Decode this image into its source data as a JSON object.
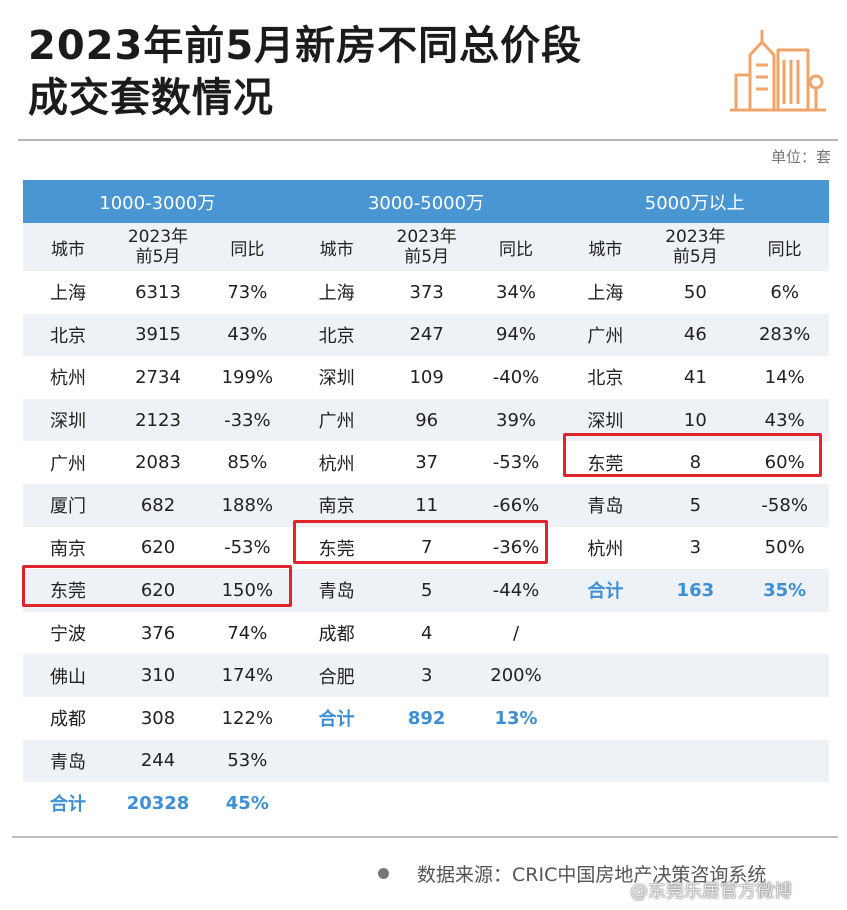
{
  "title": {
    "line1": "2023年前5月新房不同总价段",
    "line2": "成交套数情况"
  },
  "unit": "单位：套",
  "groups": [
    "1000-3000万",
    "3000-5000万",
    "5000万以上"
  ],
  "subheaders": {
    "city": "城市",
    "period_line1": "2023年",
    "period_line2": "前5月",
    "yoy": "同比"
  },
  "rows": [
    [
      [
        "上海",
        "6313",
        "73%"
      ],
      [
        "上海",
        "373",
        "34%"
      ],
      [
        "上海",
        "50",
        "6%"
      ]
    ],
    [
      [
        "北京",
        "3915",
        "43%"
      ],
      [
        "北京",
        "247",
        "94%"
      ],
      [
        "广州",
        "46",
        "283%"
      ]
    ],
    [
      [
        "杭州",
        "2734",
        "199%"
      ],
      [
        "深圳",
        "109",
        "-40%"
      ],
      [
        "北京",
        "41",
        "14%"
      ]
    ],
    [
      [
        "深圳",
        "2123",
        "-33%"
      ],
      [
        "广州",
        "96",
        "39%"
      ],
      [
        "深圳",
        "10",
        "43%"
      ]
    ],
    [
      [
        "广州",
        "2083",
        "85%"
      ],
      [
        "杭州",
        "37",
        "-53%"
      ],
      [
        "东莞",
        "8",
        "60%"
      ]
    ],
    [
      [
        "厦门",
        "682",
        "188%"
      ],
      [
        "南京",
        "11",
        "-66%"
      ],
      [
        "青岛",
        "5",
        "-58%"
      ]
    ],
    [
      [
        "南京",
        "620",
        "-53%"
      ],
      [
        "东莞",
        "7",
        "-36%"
      ],
      [
        "杭州",
        "3",
        "50%"
      ]
    ],
    [
      [
        "东莞",
        "620",
        "150%"
      ],
      [
        "青岛",
        "5",
        "-44%"
      ],
      [
        "合计",
        "163",
        "35%"
      ]
    ],
    [
      [
        "宁波",
        "376",
        "74%"
      ],
      [
        "成都",
        "4",
        "/"
      ],
      [
        "",
        "",
        ""
      ]
    ],
    [
      [
        "佛山",
        "310",
        "174%"
      ],
      [
        "合肥",
        "3",
        "200%"
      ],
      [
        "",
        "",
        ""
      ]
    ],
    [
      [
        "成都",
        "308",
        "122%"
      ],
      [
        "合计",
        "892",
        "13%"
      ],
      [
        "",
        "",
        ""
      ]
    ],
    [
      [
        "青岛",
        "244",
        "53%"
      ],
      [
        "",
        "",
        ""
      ],
      [
        "",
        "",
        ""
      ]
    ],
    [
      [
        "合计",
        "20328",
        "45%"
      ],
      [
        "",
        "",
        ""
      ],
      [
        "",
        "",
        ""
      ]
    ]
  ],
  "source": "数据来源：CRIC中国房地产决策咨询系统",
  "watermark": "@东莞乐居官方微博",
  "colors": {
    "header": "#4a96d3",
    "stripe": "#eef1f5",
    "total": "#3d8fd4",
    "highlight": "#e0262a",
    "logo": "#f0a46a"
  }
}
